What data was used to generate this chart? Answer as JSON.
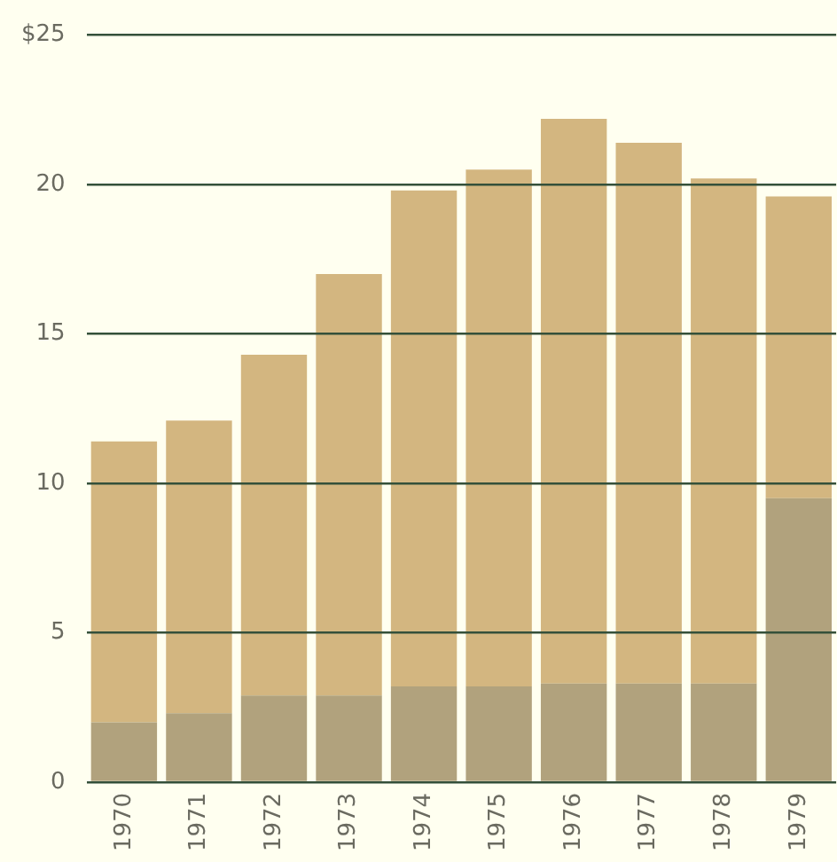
{
  "chart_data": {
    "type": "bar",
    "stacked": true,
    "categories": [
      "1970",
      "1971",
      "1972",
      "1973",
      "1974",
      "1975",
      "1976",
      "1977",
      "1978",
      "1979"
    ],
    "series": [
      {
        "color": "#b1a27d",
        "values": [
          2.0,
          2.3,
          2.9,
          2.9,
          3.2,
          3.2,
          3.3,
          3.3,
          3.3,
          9.5
        ]
      },
      {
        "color": "#d3b680",
        "values": [
          9.4,
          9.8,
          11.4,
          14.1,
          16.6,
          17.3,
          18.9,
          18.1,
          16.9,
          10.1
        ]
      }
    ],
    "ylim": [
      0,
      25
    ],
    "yticks": [
      0,
      5,
      10,
      15,
      {
        "value": 25,
        "label": "$25"
      },
      20
    ],
    "grid": "y",
    "legend": false
  }
}
